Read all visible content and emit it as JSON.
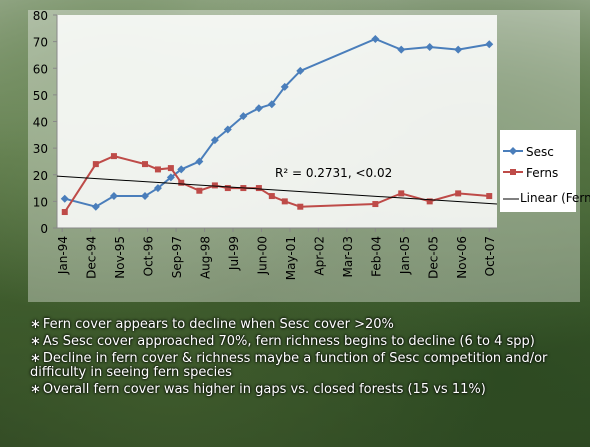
{
  "chart_data": {
    "type": "line",
    "x": [
      1,
      13,
      20,
      32,
      37,
      42,
      46,
      53,
      59,
      64,
      70,
      76,
      81,
      86,
      92,
      121,
      131,
      142,
      153,
      165
    ],
    "xlim": [
      -2,
      168
    ],
    "xticks": [
      {
        "value": 0,
        "label": "Jan-94"
      },
      {
        "value": 11,
        "label": "Dec-94"
      },
      {
        "value": 22,
        "label": "Nov-95"
      },
      {
        "value": 33,
        "label": "Oct-96"
      },
      {
        "value": 44,
        "label": "Sep-97"
      },
      {
        "value": 55,
        "label": "Aug-98"
      },
      {
        "value": 66,
        "label": "Jul-99"
      },
      {
        "value": 77,
        "label": "Jun-00"
      },
      {
        "value": 88,
        "label": "May-01"
      },
      {
        "value": 99,
        "label": "Apr-02"
      },
      {
        "value": 110,
        "label": "Mar-03"
      },
      {
        "value": 121,
        "label": "Feb-04"
      },
      {
        "value": 132,
        "label": "Jan-05"
      },
      {
        "value": 143,
        "label": "Dec-05"
      },
      {
        "value": 154,
        "label": "Nov-06"
      },
      {
        "value": 165,
        "label": "Oct-07"
      }
    ],
    "ylim": [
      0,
      80
    ],
    "yticks": [
      0,
      10,
      20,
      30,
      40,
      50,
      60,
      70,
      80
    ],
    "series": [
      {
        "name": "Sesc",
        "color": "#4a7ebb",
        "marker": "diamond",
        "values": [
          11,
          8,
          12,
          12,
          15,
          19,
          22,
          25,
          33,
          37,
          42,
          45,
          46.5,
          53,
          59,
          71,
          67,
          68,
          67,
          69
        ]
      },
      {
        "name": "Ferns",
        "color": "#be4b48",
        "marker": "square",
        "values": [
          6,
          24,
          27,
          24,
          22,
          22.5,
          17,
          14,
          16,
          15,
          15,
          15,
          12,
          10,
          8,
          9,
          13,
          10,
          13,
          12
        ]
      }
    ],
    "trendline": {
      "name": "Linear (Ferns)",
      "color": "#000000",
      "x": [
        -2,
        168
      ],
      "values": [
        19.5,
        9
      ]
    },
    "annotation": "R² = 0.2731, <0.02"
  },
  "bullets": [
    "Fern cover appears to decline when Sesc cover >20%",
    "As Sesc cover approached 70%, fern richness begins to decline (6 to 4 spp)",
    "Decline in fern cover & richness maybe a function of Sesc competition and/or difficulty in seeing fern species",
    "Overall fern cover was higher in gaps vs. closed forests (15 vs 11%)"
  ]
}
